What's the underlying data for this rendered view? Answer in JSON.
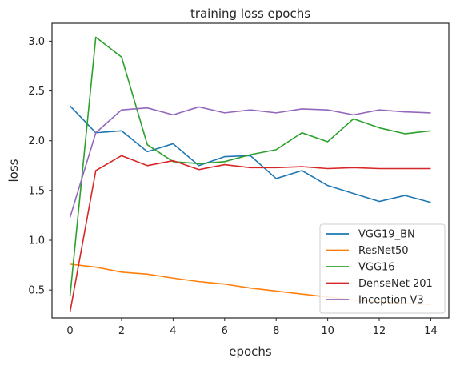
{
  "chart_data": {
    "type": "line",
    "title": "training loss epochs",
    "xlabel": "epochs",
    "ylabel": "loss",
    "x": [
      0,
      1,
      2,
      3,
      4,
      5,
      6,
      7,
      8,
      9,
      10,
      11,
      12,
      13,
      14
    ],
    "xlim": [
      -0.7,
      14.7
    ],
    "ylim": [
      0.22,
      3.18
    ],
    "xticks": [
      0,
      2,
      4,
      6,
      8,
      10,
      12,
      14
    ],
    "yticks": [
      0.5,
      1.0,
      1.5,
      2.0,
      2.5,
      3.0
    ],
    "grid": false,
    "legend_position": "lower-right",
    "series": [
      {
        "name": "VGG19_BN",
        "color": "#1f77b4",
        "values": [
          2.35,
          2.08,
          2.1,
          1.89,
          1.97,
          1.75,
          1.84,
          1.85,
          1.62,
          1.7,
          1.55,
          1.47,
          1.39,
          1.45,
          1.38
        ]
      },
      {
        "name": "ResNet50",
        "color": "#ff7f0e",
        "values": [
          0.76,
          0.73,
          0.68,
          0.66,
          0.62,
          0.585,
          0.56,
          0.52,
          0.49,
          0.46,
          0.43,
          0.4,
          0.38,
          0.365,
          0.355
        ]
      },
      {
        "name": "VGG16",
        "color": "#2ca02c",
        "values": [
          0.44,
          3.04,
          2.84,
          1.96,
          1.79,
          1.77,
          1.79,
          1.86,
          1.91,
          2.08,
          1.99,
          2.22,
          2.13,
          2.07,
          2.1
        ]
      },
      {
        "name": "DenseNet 201",
        "color": "#d62728",
        "values": [
          0.28,
          1.7,
          1.85,
          1.75,
          1.8,
          1.71,
          1.76,
          1.73,
          1.73,
          1.74,
          1.72,
          1.73,
          1.72,
          1.72,
          1.72
        ]
      },
      {
        "name": "Inception V3",
        "color": "#9467bd",
        "values": [
          1.23,
          2.08,
          2.31,
          2.33,
          2.26,
          2.34,
          2.28,
          2.31,
          2.28,
          2.32,
          2.31,
          2.26,
          2.31,
          2.29,
          2.28
        ]
      }
    ]
  }
}
